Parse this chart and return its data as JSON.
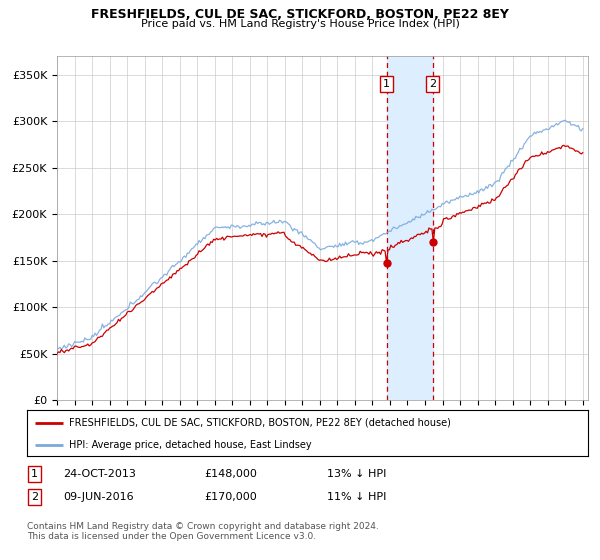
{
  "title": "FRESHFIELDS, CUL DE SAC, STICKFORD, BOSTON, PE22 8EY",
  "subtitle": "Price paid vs. HM Land Registry's House Price Index (HPI)",
  "ytick_values": [
    0,
    50000,
    100000,
    150000,
    200000,
    250000,
    300000,
    350000
  ],
  "ylim": [
    0,
    370000
  ],
  "xlim_start": 1995.0,
  "xlim_end": 2025.3,
  "legend_label_red": "FRESHFIELDS, CUL DE SAC, STICKFORD, BOSTON, PE22 8EY (detached house)",
  "legend_label_blue": "HPI: Average price, detached house, East Lindsey",
  "transaction1_date": "24-OCT-2013",
  "transaction1_price": "£148,000",
  "transaction1_hpi": "13% ↓ HPI",
  "transaction1_x": 2013.81,
  "transaction2_date": "09-JUN-2016",
  "transaction2_price": "£170,000",
  "transaction2_hpi": "11% ↓ HPI",
  "transaction2_x": 2016.44,
  "marker1_y": 148000,
  "marker2_y": 170000,
  "shaded_color": "#ddeeff",
  "red_color": "#cc0000",
  "blue_color": "#7aaadd",
  "footer_text": "Contains HM Land Registry data © Crown copyright and database right 2024.\nThis data is licensed under the Open Government Licence v3.0.",
  "background_color": "#ffffff",
  "grid_color": "#cccccc"
}
